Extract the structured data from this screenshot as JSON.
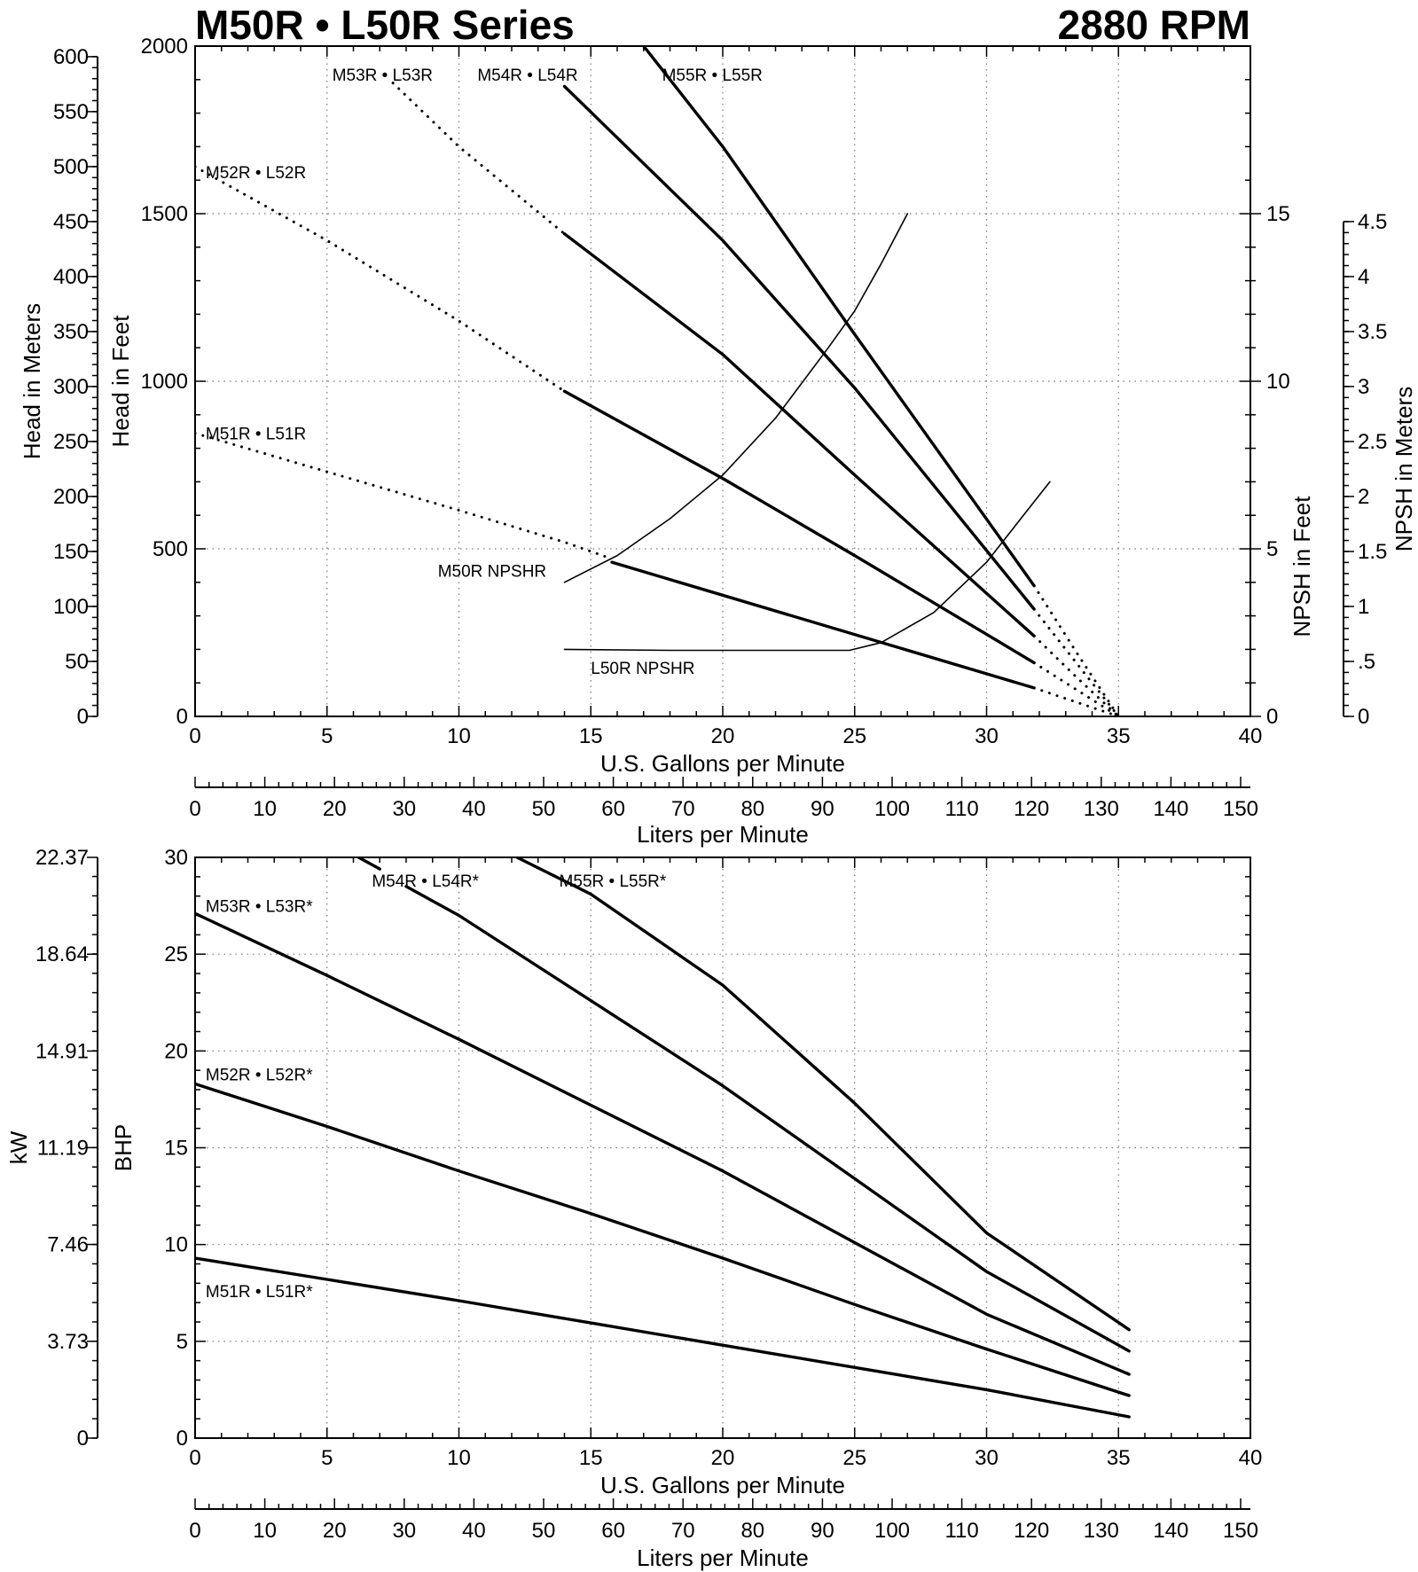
{
  "page": {
    "title": "M50R • L50R Series",
    "speed": "2880 RPM"
  },
  "chart_data": [
    {
      "id": "head",
      "type": "line",
      "title": "M50R • L50R Series",
      "xlabel": "U.S. Gallons per Minute",
      "xlim": [
        0,
        40
      ],
      "xticks": [
        0,
        5,
        10,
        15,
        20,
        25,
        30,
        35,
        40
      ],
      "x2label": "Liters per Minute",
      "x2lim": [
        0,
        151.4
      ],
      "x2ticks": [
        0,
        10,
        20,
        30,
        40,
        50,
        60,
        70,
        80,
        90,
        100,
        110,
        120,
        130,
        140,
        150
      ],
      "ylabel": "Head in Feet",
      "ylim": [
        0,
        2000
      ],
      "yticks": [
        0,
        500,
        1000,
        1500,
        2000
      ],
      "y_meters_label": "Head in Meters",
      "y_meters_lim": [
        0,
        609.6
      ],
      "y_meters_ticks": [
        "0",
        "50",
        "100",
        "150",
        "200",
        "250",
        "300",
        "350",
        "400",
        "450",
        "500",
        "550",
        "600"
      ],
      "npsh_feet_label": "NPSH in Feet",
      "npsh_feet_lim": [
        0,
        20
      ],
      "npsh_feet_ticks": [
        "0",
        "5",
        "10",
        "15"
      ],
      "npsh_meters_label": "NPSH in Meters",
      "npsh_meters_lim": [
        0,
        4.5
      ],
      "npsh_meters_ticks": [
        "0",
        ".5",
        "1",
        "1.5",
        "2",
        "2.5",
        "3",
        "3.5",
        "4",
        "4.5"
      ],
      "grid": true,
      "series": [
        {
          "name": "M51R • L51R",
          "style": "solid",
          "axis": "head",
          "x": [
            15.8,
            31.8
          ],
          "y": [
            460,
            85
          ]
        },
        {
          "name": "M51R • L51R",
          "style": "dotted",
          "axis": "head",
          "x": [
            0,
            5,
            10,
            14,
            15.8
          ],
          "y": [
            845,
            730,
            615,
            520,
            470
          ]
        },
        {
          "name": "M51R • L51R",
          "style": "dotted",
          "axis": "head",
          "x": [
            31.8,
            33.5,
            35
          ],
          "y": [
            85,
            40,
            0
          ]
        },
        {
          "name": "M52R • L52R",
          "style": "solid",
          "axis": "head",
          "x": [
            14,
            20,
            25,
            31.8
          ],
          "y": [
            970,
            710,
            480,
            160
          ]
        },
        {
          "name": "M52R • L52R",
          "style": "dotted",
          "axis": "head",
          "x": [
            0,
            5,
            10,
            14
          ],
          "y": [
            1640,
            1420,
            1180,
            970
          ]
        },
        {
          "name": "M52R • L52R",
          "style": "dotted",
          "axis": "head",
          "x": [
            31.8,
            33.5,
            35
          ],
          "y": [
            160,
            75,
            0
          ]
        },
        {
          "name": "M53R • L53R",
          "style": "solid",
          "axis": "head",
          "x": [
            14,
            20,
            25,
            31.8
          ],
          "y": [
            1440,
            1080,
            720,
            240
          ]
        },
        {
          "name": "M53R • L53R",
          "style": "dotted",
          "axis": "head",
          "x": [
            7.5,
            10,
            14
          ],
          "y": [
            1890,
            1700,
            1440
          ]
        },
        {
          "name": "M53R • L53R",
          "style": "dotted",
          "axis": "head",
          "x": [
            31.8,
            33.5,
            35
          ],
          "y": [
            240,
            110,
            0
          ]
        },
        {
          "name": "M54R • L54R",
          "style": "solid",
          "axis": "head",
          "x": [
            14,
            20,
            25,
            31.8
          ],
          "y": [
            1880,
            1420,
            980,
            320
          ]
        },
        {
          "name": "M54R • L54R",
          "style": "dotted",
          "axis": "head",
          "x": [
            31.8,
            33.5,
            35
          ],
          "y": [
            320,
            150,
            0
          ]
        },
        {
          "name": "M55R • L55R",
          "style": "solid",
          "axis": "head",
          "x": [
            17,
            20,
            25,
            31.8
          ],
          "y": [
            2000,
            1700,
            1140,
            390
          ]
        },
        {
          "name": "M55R • L55R",
          "style": "dotted",
          "axis": "head",
          "x": [
            31.8,
            33.5,
            35
          ],
          "y": [
            390,
            180,
            0
          ]
        },
        {
          "name": "M50R NPSHR",
          "style": "thin",
          "axis": "npsh",
          "x": [
            14,
            16,
            18,
            20,
            22,
            24,
            25,
            26,
            27
          ],
          "y": [
            4,
            4.8,
            5.9,
            7.2,
            8.9,
            11,
            12.1,
            13.5,
            15
          ]
        },
        {
          "name": "L50R NPSHR",
          "style": "thin",
          "axis": "npsh",
          "x": [
            14,
            18,
            22,
            24.8,
            26,
            28,
            30,
            31.5,
            32.4
          ],
          "y": [
            2,
            1.97,
            1.97,
            1.97,
            2.2,
            3.1,
            4.6,
            6.1,
            7
          ]
        }
      ],
      "labels": [
        {
          "text": "M53R • L53R",
          "x": 5.2,
          "y": 1915
        },
        {
          "text": "M54R • L54R",
          "x": 10.7,
          "y": 1915
        },
        {
          "text": "M55R • L55R",
          "x": 17.7,
          "y": 1915
        },
        {
          "text": "M52R • L52R",
          "x": 0.4,
          "y": 1625
        },
        {
          "text": "M51R • L51R",
          "x": 0.4,
          "y": 845
        },
        {
          "text": "M50R  NPSHR",
          "x": 9.2,
          "y": 435
        },
        {
          "text": "L50R NPSHR",
          "x": 15,
          "y": 145
        }
      ]
    },
    {
      "id": "power",
      "type": "line",
      "xlabel": "U.S. Gallons per Minute",
      "xlim": [
        0,
        40
      ],
      "xticks": [
        0,
        5,
        10,
        15,
        20,
        25,
        30,
        35,
        40
      ],
      "x2label": "Liters per Minute",
      "x2lim": [
        0,
        151.4
      ],
      "x2ticks": [
        0,
        10,
        20,
        30,
        40,
        50,
        60,
        70,
        80,
        90,
        100,
        110,
        120,
        130,
        140,
        150
      ],
      "ylabel": "BHP",
      "ylim": [
        0,
        30
      ],
      "yticks": [
        0,
        5,
        10,
        15,
        20,
        25,
        30
      ],
      "y_kw_label": "kW",
      "y_kw_lim": [
        0,
        22.37
      ],
      "y_kw_ticks": [
        "0",
        "3.73",
        "7.46",
        "11.19",
        "14.91",
        "18.64",
        "22.37"
      ],
      "grid": true,
      "series": [
        {
          "name": "M51R • L51R*",
          "x": [
            0,
            5,
            10,
            15,
            20,
            25,
            30,
            35.4
          ],
          "y": [
            9.3,
            8.2,
            7.1,
            5.95,
            4.8,
            3.65,
            2.5,
            1.1
          ]
        },
        {
          "name": "M52R • L52R*",
          "x": [
            0,
            5,
            10,
            15,
            20,
            25,
            30,
            35.4
          ],
          "y": [
            18.3,
            16.1,
            13.8,
            11.6,
            9.3,
            6.9,
            4.6,
            2.2
          ]
        },
        {
          "name": "M53R • L53R*",
          "x": [
            0,
            5,
            10,
            15,
            20,
            25,
            30,
            35.4
          ],
          "y": [
            27.1,
            23.9,
            20.6,
            17.2,
            13.8,
            10.1,
            6.4,
            3.3
          ]
        },
        {
          "name": "M54R • L54R*",
          "x": [
            8,
            10,
            15,
            20,
            25,
            30,
            35.4
          ],
          "y": [
            28.5,
            27,
            22.6,
            18.2,
            13.4,
            8.6,
            4.5
          ]
        },
        {
          "name": "M55R • L55R*",
          "x": [
            6.2,
            7
          ],
          "y": [
            30,
            29.4
          ]
        },
        {
          "name": "M55R • L55R*",
          "x": [
            12.2,
            15,
            20,
            25,
            30,
            35.4
          ],
          "y": [
            30,
            28.1,
            23.4,
            17.3,
            10.6,
            5.6
          ]
        }
      ],
      "labels": [
        {
          "text": "M54R • L54R*",
          "x": 6.7,
          "y": 28.8
        },
        {
          "text": "M55R • L55R*",
          "x": 13.8,
          "y": 28.8
        },
        {
          "text": "M53R • L53R*",
          "x": 0.4,
          "y": 27.5
        },
        {
          "text": "M52R • L52R*",
          "x": 0.4,
          "y": 18.8
        },
        {
          "text": "M51R • L51R*",
          "x": 0.4,
          "y": 7.6
        }
      ]
    }
  ]
}
